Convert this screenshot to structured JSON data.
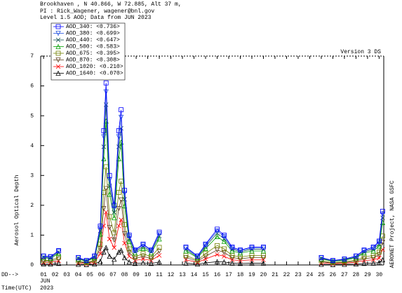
{
  "chart_data": {
    "type": "line",
    "header": [
      "Brookhaven , N 40.866, W  72.885, Alt 37 m,",
      "PI : Rick_Wagener, wagener@bnl.gov",
      "Level 1.5 AOD; Data from JUN 2023"
    ],
    "annotation": "Version 3 DS",
    "ylabel": "Aerosol Optical Depth",
    "credit": "AERONET Project, NASA GSFC",
    "x_prefix": "DD-->",
    "month": "JUN",
    "time_label": "Time(UTC)",
    "year": "2023",
    "legend": "upper left",
    "x": [
      1,
      1.6,
      2.3,
      3,
      4,
      4.7,
      5.4,
      5.9,
      6.2,
      6.4,
      6.7,
      7.1,
      7.5,
      7.7,
      8,
      8.4,
      8.9,
      9.6,
      10.3,
      11,
      12,
      13.3,
      14.3,
      15,
      16,
      16.6,
      17.3,
      18,
      19,
      20,
      22,
      25,
      26,
      27,
      28,
      28.7,
      29.5,
      30,
      30.3
    ],
    "series": [
      {
        "name": "AOD_340: <0.736>",
        "color": "#0000ff",
        "marker": "square",
        "values": [
          0.3,
          0.28,
          0.48,
          null,
          0.25,
          0.15,
          0.3,
          1.3,
          4.5,
          6.1,
          3.0,
          2.0,
          4.5,
          5.2,
          2.5,
          1.0,
          0.5,
          0.7,
          0.5,
          1.1,
          null,
          0.6,
          0.3,
          0.7,
          1.2,
          1.0,
          0.6,
          0.5,
          0.6,
          0.6,
          null,
          0.25,
          0.15,
          0.2,
          0.3,
          0.5,
          0.6,
          0.8,
          1.8
        ]
      },
      {
        "name": "AOD_380: <0.699>",
        "color": "#2050e0",
        "marker": "triangle-down",
        "values": [
          0.29,
          0.27,
          0.46,
          null,
          0.24,
          0.14,
          0.29,
          1.24,
          4.3,
          5.8,
          2.85,
          1.9,
          4.3,
          4.95,
          2.4,
          0.95,
          0.48,
          0.67,
          0.48,
          1.05,
          null,
          0.57,
          0.29,
          0.67,
          1.14,
          0.95,
          0.57,
          0.48,
          0.57,
          0.57,
          null,
          0.24,
          0.14,
          0.19,
          0.29,
          0.48,
          0.57,
          0.76,
          1.71
        ]
      },
      {
        "name": "AOD_440: <0.647>",
        "color": "#105050",
        "marker": "x",
        "values": [
          0.26,
          0.25,
          0.42,
          null,
          0.22,
          0.13,
          0.26,
          1.14,
          3.96,
          5.37,
          2.64,
          1.76,
          3.96,
          4.58,
          2.2,
          0.88,
          0.44,
          0.62,
          0.44,
          0.97,
          null,
          0.53,
          0.26,
          0.62,
          1.06,
          0.88,
          0.53,
          0.44,
          0.53,
          0.53,
          null,
          0.22,
          0.13,
          0.18,
          0.26,
          0.44,
          0.53,
          0.7,
          1.58
        ]
      },
      {
        "name": "AOD_500: <0.583>",
        "color": "#00a000",
        "marker": "triangle-up",
        "values": [
          0.24,
          0.22,
          0.38,
          null,
          0.2,
          0.12,
          0.24,
          1.03,
          3.56,
          4.82,
          2.37,
          1.58,
          3.56,
          4.11,
          1.98,
          0.79,
          0.4,
          0.55,
          0.4,
          0.87,
          null,
          0.47,
          0.24,
          0.55,
          0.95,
          0.79,
          0.47,
          0.4,
          0.47,
          0.47,
          null,
          0.2,
          0.12,
          0.16,
          0.24,
          0.4,
          0.47,
          0.63,
          1.42
        ]
      },
      {
        "name": "AOD_675: <0.395>",
        "color": "#708000",
        "marker": "square",
        "values": [
          0.16,
          0.15,
          0.26,
          null,
          0.14,
          0.08,
          0.16,
          0.7,
          2.43,
          3.29,
          1.62,
          1.08,
          2.43,
          2.81,
          1.35,
          0.54,
          0.27,
          0.38,
          0.27,
          0.59,
          null,
          0.32,
          0.16,
          0.38,
          0.65,
          0.54,
          0.32,
          0.27,
          0.32,
          0.32,
          null,
          0.14,
          0.08,
          0.11,
          0.16,
          0.27,
          0.32,
          0.43,
          0.97
        ]
      },
      {
        "name": "AOD_870: <0.308>",
        "color": "#604020",
        "marker": "triangle-down",
        "values": [
          0.13,
          0.12,
          0.2,
          null,
          0.11,
          0.06,
          0.13,
          0.55,
          1.89,
          2.56,
          1.26,
          0.84,
          1.89,
          2.18,
          1.05,
          0.42,
          0.21,
          0.29,
          0.21,
          0.46,
          null,
          0.25,
          0.13,
          0.29,
          0.5,
          0.42,
          0.25,
          0.21,
          0.25,
          0.25,
          null,
          0.11,
          0.06,
          0.08,
          0.13,
          0.21,
          0.25,
          0.34,
          0.76
        ]
      },
      {
        "name": "AOD_1020: <0.210>",
        "color": "#ff0000",
        "marker": "x",
        "values": [
          0.09,
          0.08,
          0.14,
          null,
          0.07,
          0.04,
          0.09,
          0.38,
          1.31,
          1.77,
          0.87,
          0.58,
          1.31,
          1.51,
          0.73,
          0.29,
          0.15,
          0.2,
          0.15,
          0.32,
          null,
          0.17,
          0.09,
          0.2,
          0.35,
          0.29,
          0.17,
          0.15,
          0.17,
          0.17,
          null,
          0.07,
          0.04,
          0.06,
          0.09,
          0.15,
          0.17,
          0.23,
          0.52
        ]
      },
      {
        "name": "AOD_1640: <0.070>",
        "color": "#000000",
        "marker": "triangle-up",
        "values": [
          0.03,
          0.03,
          0.05,
          null,
          0.02,
          0.01,
          0.03,
          0.12,
          0.43,
          0.58,
          0.29,
          0.19,
          0.43,
          0.49,
          0.24,
          0.1,
          0.05,
          0.07,
          0.05,
          0.1,
          null,
          0.06,
          0.03,
          0.07,
          0.11,
          0.1,
          0.06,
          0.05,
          0.06,
          0.06,
          null,
          0.02,
          0.01,
          0.02,
          0.03,
          0.05,
          0.06,
          0.08,
          0.17
        ]
      }
    ],
    "xlim": [
      0.75,
      30.4
    ],
    "xticks": [
      {
        "value": 1,
        "label": "01"
      },
      {
        "value": 2,
        "label": "02"
      },
      {
        "value": 3,
        "label": "03"
      },
      {
        "value": 4,
        "label": "04"
      },
      {
        "value": 5,
        "label": "05"
      },
      {
        "value": 6,
        "label": "06"
      },
      {
        "value": 7,
        "label": "07"
      },
      {
        "value": 8,
        "label": "08"
      },
      {
        "value": 9,
        "label": "09"
      },
      {
        "value": 10,
        "label": "10"
      },
      {
        "value": 11,
        "label": "11"
      },
      {
        "value": 12,
        "label": "12"
      },
      {
        "value": 13,
        "label": "13"
      },
      {
        "value": 14,
        "label": "14"
      },
      {
        "value": 15,
        "label": "15"
      },
      {
        "value": 16,
        "label": "16"
      },
      {
        "value": 17,
        "label": "17"
      },
      {
        "value": 18,
        "label": "18"
      },
      {
        "value": 19,
        "label": "19"
      },
      {
        "value": 20,
        "label": "20"
      },
      {
        "value": 21,
        "label": "21"
      },
      {
        "value": 22,
        "label": "22"
      },
      {
        "value": 23,
        "label": "23"
      },
      {
        "value": 24,
        "label": "24"
      },
      {
        "value": 25,
        "label": "25"
      },
      {
        "value": 26,
        "label": "26"
      },
      {
        "value": 27,
        "label": "27"
      },
      {
        "value": 28,
        "label": "28"
      },
      {
        "value": 29,
        "label": "29"
      },
      {
        "value": 30,
        "label": "30"
      }
    ],
    "ylim": [
      0,
      7
    ],
    "yticks": [
      0,
      1,
      2,
      3,
      4,
      5,
      6,
      7
    ]
  }
}
